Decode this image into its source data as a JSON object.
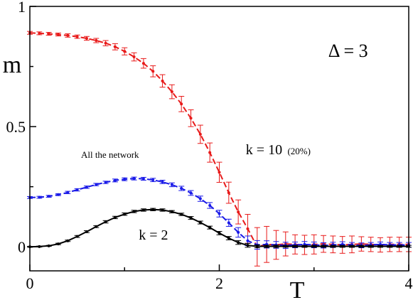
{
  "chart_data": {
    "type": "line",
    "xlabel": "T",
    "ylabel": "m",
    "xlim": [
      0,
      4
    ],
    "ylim": [
      -0.1,
      1.0
    ],
    "x_ticks": [
      {
        "value": 0,
        "label": "0"
      },
      {
        "value": 2,
        "label": "2"
      },
      {
        "value": 4,
        "label": "4"
      }
    ],
    "y_ticks": [
      {
        "value": 0,
        "label": "0"
      },
      {
        "value": 0.5,
        "label": "0.5"
      },
      {
        "value": 1,
        "label": "1"
      }
    ],
    "grid": false,
    "annotations": [
      {
        "text": "Δ = 3",
        "x": 3.15,
        "y": 0.79
      },
      {
        "text": "k = 10",
        "x": 2.28,
        "y": 0.385
      },
      {
        "text": "(20%)",
        "x": 2.72,
        "y": 0.385
      },
      {
        "text": "All the network",
        "x": 0.54,
        "y": 0.37
      },
      {
        "text": "k = 2",
        "x": 1.15,
        "y": 0.03
      }
    ],
    "series": [
      {
        "color": "#e81a1a",
        "dash": true,
        "points": [
          [
            0.0,
            0.89,
            0.006
          ],
          [
            0.1,
            0.888,
            0.006
          ],
          [
            0.2,
            0.886,
            0.006
          ],
          [
            0.3,
            0.883,
            0.006
          ],
          [
            0.4,
            0.879,
            0.007
          ],
          [
            0.5,
            0.874,
            0.007
          ],
          [
            0.6,
            0.867,
            0.008
          ],
          [
            0.7,
            0.858,
            0.009
          ],
          [
            0.8,
            0.847,
            0.011
          ],
          [
            0.9,
            0.832,
            0.013
          ],
          [
            1.0,
            0.813,
            0.015
          ],
          [
            1.1,
            0.79,
            0.017
          ],
          [
            1.2,
            0.763,
            0.02
          ],
          [
            1.3,
            0.73,
            0.023
          ],
          [
            1.4,
            0.69,
            0.026
          ],
          [
            1.5,
            0.645,
            0.029
          ],
          [
            1.6,
            0.594,
            0.032
          ],
          [
            1.7,
            0.535,
            0.035
          ],
          [
            1.8,
            0.468,
            0.038
          ],
          [
            1.9,
            0.392,
            0.04
          ],
          [
            2.0,
            0.31,
            0.042
          ],
          [
            2.1,
            0.225,
            0.044
          ],
          [
            2.2,
            0.145,
            0.05
          ],
          [
            2.3,
            0.075,
            0.06
          ],
          [
            2.4,
            0.0,
            0.08
          ],
          [
            2.5,
            0.01,
            0.075
          ],
          [
            2.6,
            0.008,
            0.06
          ],
          [
            2.7,
            0.012,
            0.05
          ],
          [
            2.8,
            0.01,
            0.04
          ],
          [
            2.9,
            0.008,
            0.04
          ],
          [
            3.0,
            0.01,
            0.04
          ],
          [
            3.1,
            0.012,
            0.035
          ],
          [
            3.2,
            0.01,
            0.035
          ],
          [
            3.3,
            0.008,
            0.035
          ],
          [
            3.4,
            0.01,
            0.035
          ],
          [
            3.5,
            0.012,
            0.03
          ],
          [
            3.6,
            0.01,
            0.03
          ],
          [
            3.7,
            0.008,
            0.03
          ],
          [
            3.8,
            0.01,
            0.03
          ],
          [
            3.9,
            0.01,
            0.03
          ],
          [
            4.0,
            0.01,
            0.03
          ]
        ]
      },
      {
        "color": "#1a1ae8",
        "dash": true,
        "points": [
          [
            0.0,
            0.205,
            0.004
          ],
          [
            0.1,
            0.206,
            0.004
          ],
          [
            0.2,
            0.21,
            0.004
          ],
          [
            0.3,
            0.217,
            0.004
          ],
          [
            0.4,
            0.226,
            0.005
          ],
          [
            0.5,
            0.237,
            0.005
          ],
          [
            0.6,
            0.248,
            0.005
          ],
          [
            0.7,
            0.259,
            0.005
          ],
          [
            0.8,
            0.268,
            0.005
          ],
          [
            0.9,
            0.276,
            0.006
          ],
          [
            1.0,
            0.281,
            0.006
          ],
          [
            1.1,
            0.284,
            0.006
          ],
          [
            1.2,
            0.283,
            0.006
          ],
          [
            1.3,
            0.278,
            0.007
          ],
          [
            1.4,
            0.27,
            0.007
          ],
          [
            1.5,
            0.258,
            0.008
          ],
          [
            1.6,
            0.243,
            0.009
          ],
          [
            1.7,
            0.224,
            0.01
          ],
          [
            1.8,
            0.2,
            0.011
          ],
          [
            1.9,
            0.172,
            0.012
          ],
          [
            2.0,
            0.138,
            0.014
          ],
          [
            2.1,
            0.1,
            0.015
          ],
          [
            2.2,
            0.06,
            0.02
          ],
          [
            2.3,
            0.025,
            0.02
          ],
          [
            2.4,
            0.008,
            0.018
          ],
          [
            2.5,
            0.01,
            0.015
          ],
          [
            2.6,
            0.008,
            0.014
          ],
          [
            2.7,
            0.006,
            0.013
          ],
          [
            2.8,
            0.008,
            0.012
          ],
          [
            2.9,
            0.01,
            0.012
          ],
          [
            3.0,
            0.008,
            0.012
          ],
          [
            3.1,
            0.006,
            0.011
          ],
          [
            3.2,
            0.008,
            0.011
          ],
          [
            3.3,
            0.01,
            0.011
          ],
          [
            3.4,
            0.008,
            0.01
          ],
          [
            3.5,
            0.006,
            0.01
          ],
          [
            3.6,
            0.008,
            0.01
          ],
          [
            3.7,
            0.01,
            0.01
          ],
          [
            3.8,
            0.008,
            0.01
          ],
          [
            3.9,
            0.008,
            0.01
          ],
          [
            4.0,
            0.008,
            0.01
          ]
        ]
      },
      {
        "color": "#000000",
        "dash": false,
        "points": [
          [
            0.0,
            0.0,
            0.002
          ],
          [
            0.1,
            0.001,
            0.002
          ],
          [
            0.2,
            0.004,
            0.002
          ],
          [
            0.3,
            0.012,
            0.003
          ],
          [
            0.4,
            0.025,
            0.003
          ],
          [
            0.5,
            0.043,
            0.004
          ],
          [
            0.6,
            0.063,
            0.004
          ],
          [
            0.7,
            0.084,
            0.004
          ],
          [
            0.8,
            0.104,
            0.005
          ],
          [
            0.9,
            0.122,
            0.005
          ],
          [
            1.0,
            0.136,
            0.005
          ],
          [
            1.1,
            0.147,
            0.005
          ],
          [
            1.2,
            0.153,
            0.005
          ],
          [
            1.3,
            0.155,
            0.005
          ],
          [
            1.4,
            0.153,
            0.005
          ],
          [
            1.5,
            0.146,
            0.005
          ],
          [
            1.6,
            0.135,
            0.005
          ],
          [
            1.7,
            0.12,
            0.006
          ],
          [
            1.8,
            0.101,
            0.006
          ],
          [
            1.9,
            0.08,
            0.006
          ],
          [
            2.0,
            0.057,
            0.007
          ],
          [
            2.1,
            0.036,
            0.007
          ],
          [
            2.2,
            0.018,
            0.008
          ],
          [
            2.3,
            0.006,
            0.008
          ],
          [
            2.4,
            0.002,
            0.006
          ],
          [
            2.5,
            0.002,
            0.005
          ],
          [
            2.6,
            0.002,
            0.005
          ],
          [
            2.7,
            0.002,
            0.004
          ],
          [
            2.8,
            0.002,
            0.004
          ],
          [
            2.9,
            0.002,
            0.004
          ],
          [
            3.0,
            0.002,
            0.004
          ],
          [
            3.1,
            0.002,
            0.004
          ],
          [
            3.2,
            0.002,
            0.004
          ],
          [
            3.3,
            0.002,
            0.004
          ],
          [
            3.4,
            0.002,
            0.004
          ],
          [
            3.5,
            0.002,
            0.004
          ],
          [
            3.6,
            0.002,
            0.004
          ],
          [
            3.7,
            0.002,
            0.004
          ],
          [
            3.8,
            0.002,
            0.004
          ],
          [
            3.9,
            0.002,
            0.004
          ],
          [
            4.0,
            0.002,
            0.004
          ]
        ]
      }
    ]
  }
}
